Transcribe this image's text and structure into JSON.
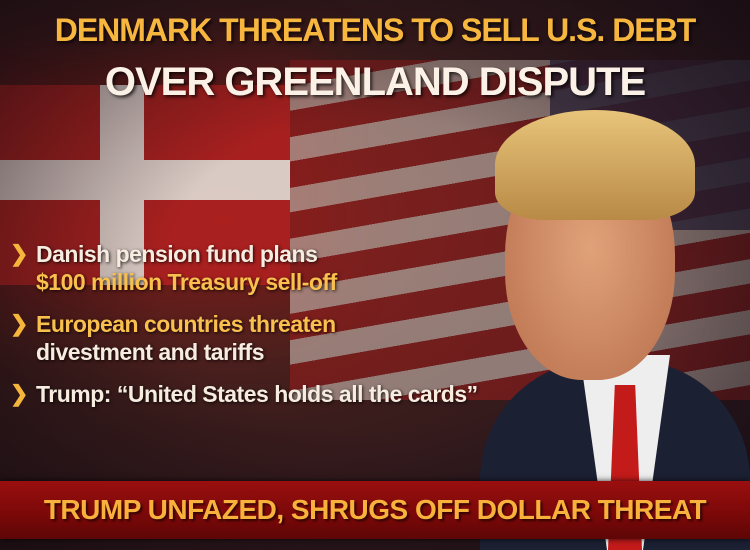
{
  "headline": {
    "line1": "DENMARK THREATENS TO SELL U.S. DEBT",
    "line2": "OVER GREENLAND DISPUTE"
  },
  "bullets": [
    {
      "icon": "chevron-right-icon",
      "line1": "Danish pension fund plans",
      "line2": "$100 million Treasury sell-off"
    },
    {
      "icon": "chevron-right-icon",
      "line1": "European countries threaten",
      "line2": "divestment and tariffs"
    },
    {
      "icon": "chevron-right-icon",
      "line1": "Trump: “United States holds all the cards”"
    }
  ],
  "banner": {
    "text": "TRUMP UNFAZED, SHRUGS OFF DOLLAR THREAT"
  },
  "colors": {
    "accent": "#f6b63c",
    "banner": "#8a0c0c",
    "white_text": "#f6ece0"
  }
}
